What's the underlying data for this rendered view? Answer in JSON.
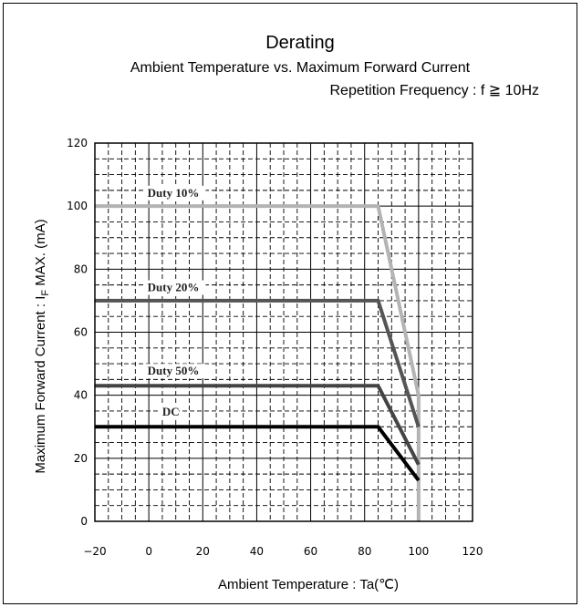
{
  "chart_data": {
    "type": "line",
    "title": "Derating",
    "subtitle": "Ambient Temperature vs. Maximum Forward Current",
    "subtitle2": "Repetition Frequency : f ≧ 10Hz",
    "xlabel": "Ambient Temperature : Ta(℃)",
    "ylabel_prefix": "Maximum Forward Current : I",
    "ylabel_sub": "F",
    "ylabel_suffix": " MAX. (mA)",
    "xlim": [
      -20,
      120
    ],
    "ylim": [
      0,
      120
    ],
    "xticks": [
      -20,
      0,
      20,
      40,
      60,
      80,
      100,
      120
    ],
    "yticks": [
      0,
      20,
      40,
      60,
      80,
      100,
      120
    ],
    "grid": true,
    "series": [
      {
        "name": "Duty 10%",
        "color": "#b4b4b4",
        "x": [
          -20,
          85,
          100,
          100
        ],
        "y": [
          100,
          100,
          40,
          0
        ],
        "label_x": -0.5,
        "label_y": 103
      },
      {
        "name": "Duty 20%",
        "color": "#555555",
        "x": [
          -20,
          85,
          100
        ],
        "y": [
          70,
          70,
          30
        ],
        "label_x": -0.5,
        "label_y": 73
      },
      {
        "name": "Duty 50%",
        "color": "#444444",
        "x": [
          -20,
          85,
          100
        ],
        "y": [
          43,
          43,
          18
        ],
        "label_x": -0.5,
        "label_y": 46.5
      },
      {
        "name": "DC",
        "color": "#000000",
        "x": [
          -20,
          85,
          100
        ],
        "y": [
          30,
          30,
          13
        ],
        "label_x": 5,
        "label_y": 33.5
      }
    ]
  }
}
